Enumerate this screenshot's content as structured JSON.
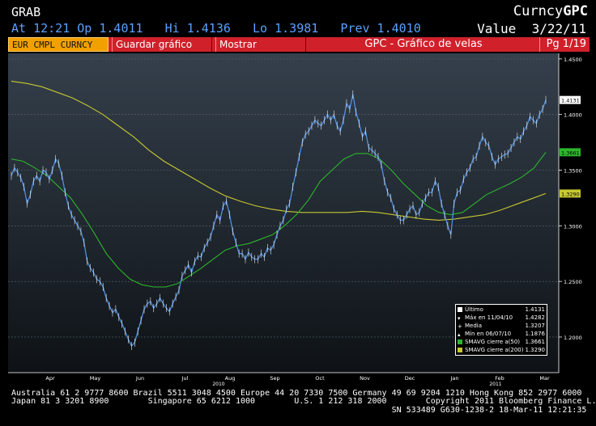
{
  "header": {
    "ticker": "GRAB",
    "right_prefix": "Curncy",
    "right_code": "GPC",
    "quote_line": "At 12:21 Op 1.4011   Hi 1.4136   Lo 1.3981   Prev 1.4010",
    "value_label": "Value  3/22/11"
  },
  "tabs": {
    "security": "EUR CMPL CURNCY",
    "save": "Guardar gráfico",
    "show": "Mostrar",
    "title": "GPC - Gráfico de velas",
    "page": "Pg 1/19"
  },
  "colors": {
    "price": "#4f8fe0",
    "sma50": "#2db52d",
    "sma200": "#c8c832",
    "tab_bar": "#d0202a",
    "tab_active": "#f2a000"
  },
  "chart_data": {
    "type": "line",
    "x_labels": [
      "Apr",
      "May",
      "Jun",
      "Jul",
      "Aug",
      "Sep",
      "Oct",
      "Nov",
      "Dec",
      "Jan",
      "Feb",
      "Mar"
    ],
    "year_labels": [
      "2010",
      "2011"
    ],
    "yticks": [
      1.2,
      1.25,
      1.3,
      1.35,
      1.4,
      1.45
    ],
    "ytick_labels": [
      "1.2000",
      "1.2500",
      "1.3000",
      "1.3500",
      "1.4000",
      "1.4500"
    ],
    "ylim": [
      1.168,
      1.455
    ],
    "price_marker": "1.4131",
    "sma50_marker": "1.3661",
    "sma200_marker": "1.3290",
    "series": [
      {
        "name": "Último",
        "values": [
          1.345,
          1.352,
          1.348,
          1.343,
          1.335,
          1.32,
          1.328,
          1.34,
          1.345,
          1.34,
          1.35,
          1.348,
          1.342,
          1.35,
          1.36,
          1.356,
          1.345,
          1.33,
          1.318,
          1.31,
          1.305,
          1.3,
          1.295,
          1.285,
          1.268,
          1.262,
          1.258,
          1.252,
          1.25,
          1.245,
          1.235,
          1.228,
          1.222,
          1.225,
          1.218,
          1.212,
          1.205,
          1.198,
          1.192,
          1.195,
          1.205,
          1.215,
          1.225,
          1.23,
          1.232,
          1.226,
          1.23,
          1.235,
          1.23,
          1.226,
          1.223,
          1.23,
          1.236,
          1.242,
          1.255,
          1.26,
          1.265,
          1.258,
          1.268,
          1.273,
          1.272,
          1.28,
          1.285,
          1.29,
          1.3,
          1.31,
          1.305,
          1.318,
          1.322,
          1.31,
          1.295,
          1.285,
          1.275,
          1.275,
          1.27,
          1.276,
          1.272,
          1.27,
          1.27,
          1.275,
          1.272,
          1.28,
          1.278,
          1.283,
          1.292,
          1.3,
          1.305,
          1.315,
          1.32,
          1.335,
          1.348,
          1.362,
          1.375,
          1.382,
          1.385,
          1.39,
          1.395,
          1.392,
          1.39,
          1.395,
          1.4,
          1.395,
          1.4,
          1.39,
          1.385,
          1.395,
          1.41,
          1.405,
          1.418,
          1.402,
          1.392,
          1.38,
          1.385,
          1.37,
          1.368,
          1.365,
          1.362,
          1.355,
          1.34,
          1.33,
          1.325,
          1.315,
          1.31,
          1.305,
          1.305,
          1.31,
          1.315,
          1.318,
          1.31,
          1.312,
          1.32,
          1.325,
          1.33,
          1.33,
          1.34,
          1.335,
          1.32,
          1.31,
          1.3,
          1.292,
          1.32,
          1.33,
          1.332,
          1.342,
          1.348,
          1.352,
          1.36,
          1.362,
          1.372,
          1.38,
          1.375,
          1.372,
          1.362,
          1.355,
          1.36,
          1.362,
          1.364,
          1.365,
          1.37,
          1.375,
          1.38,
          1.378,
          1.385,
          1.39,
          1.398,
          1.395,
          1.392,
          1.4,
          1.405,
          1.4131
        ]
      },
      {
        "name": "SMAVG cierre a(50)",
        "values": [
          1.36,
          1.358,
          1.352,
          1.345,
          1.335,
          1.325,
          1.31,
          1.293,
          1.275,
          1.262,
          1.252,
          1.247,
          1.245,
          1.245,
          1.248,
          1.255,
          1.262,
          1.27,
          1.278,
          1.282,
          1.284,
          1.288,
          1.292,
          1.3,
          1.31,
          1.323,
          1.34,
          1.35,
          1.36,
          1.365,
          1.365,
          1.36,
          1.35,
          1.338,
          1.328,
          1.318,
          1.312,
          1.31,
          1.312,
          1.32,
          1.328,
          1.333,
          1.338,
          1.344,
          1.352,
          1.3661
        ]
      },
      {
        "name": "SMAVG cierre a(200)",
        "values": [
          1.43,
          1.428,
          1.425,
          1.42,
          1.415,
          1.408,
          1.4,
          1.39,
          1.38,
          1.368,
          1.358,
          1.35,
          1.342,
          1.334,
          1.327,
          1.322,
          1.318,
          1.315,
          1.313,
          1.312,
          1.312,
          1.312,
          1.312,
          1.313,
          1.312,
          1.31,
          1.308,
          1.306,
          1.305,
          1.306,
          1.308,
          1.31,
          1.314,
          1.319,
          1.324,
          1.329
        ]
      }
    ]
  },
  "legend": {
    "rows": [
      {
        "label": "Último",
        "value": "1.4131"
      },
      {
        "label": "Máx en 11/04/10",
        "value": "1.4282"
      },
      {
        "label": "Media",
        "value": "1.3207"
      },
      {
        "label": "Mín en 06/07/10",
        "value": "1.1876"
      },
      {
        "label": "SMAVG cierre a(50)",
        "value": "1.3661"
      },
      {
        "label": "SMAVG cierre a(200)",
        "value": "1.3290"
      }
    ]
  },
  "footer": {
    "line1": "Australia 61 2 9777 8600 Brazil 5511 3048 4500 Europe 44 20 7330 7500 Germany 49 69 9204 1210 Hong Kong 852 2977 6000",
    "line2": "Japan 81 3 3201 8900        Singapore 65 6212 1000        U.S. 1 212 318 2000        Copyright 2011 Bloomberg Finance L.P.",
    "line3": "                                                                              SN 533489 G630-1238-2 18-Mar-11 12:21:35"
  }
}
